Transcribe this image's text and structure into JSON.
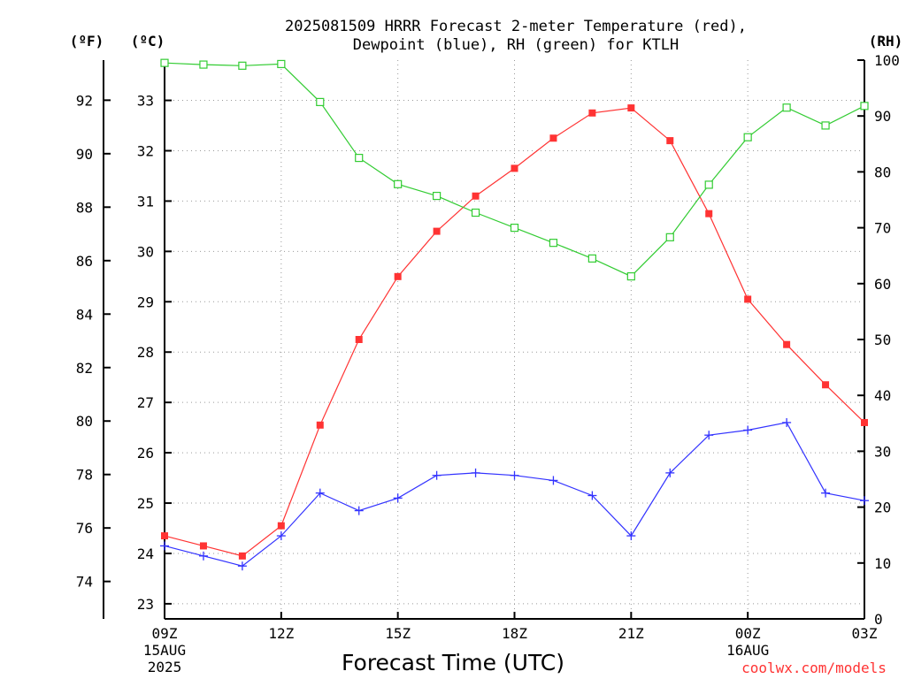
{
  "chart_data": {
    "type": "line",
    "title_line1": "2025081509 HRRR Forecast 2-meter Temperature (red),",
    "title_line2": "Dewpoint (blue), RH (green) for KTLH",
    "unit_labels": {
      "fahrenheit": "(ºF)",
      "celsius": "(ºC)",
      "rh": "(RH)"
    },
    "xlabel": "Forecast Time (UTC)",
    "credit": "coolwx.com/models",
    "x_hours": [
      0,
      1,
      2,
      3,
      4,
      5,
      6,
      7,
      8,
      9,
      10,
      11,
      12,
      13,
      14,
      15,
      16,
      17,
      18
    ],
    "x_ticks": [
      {
        "hour": 0,
        "label": "09Z",
        "sub1": "15AUG",
        "sub2": "2025"
      },
      {
        "hour": 3,
        "label": "12Z",
        "sub1": "",
        "sub2": ""
      },
      {
        "hour": 6,
        "label": "15Z",
        "sub1": "",
        "sub2": ""
      },
      {
        "hour": 9,
        "label": "18Z",
        "sub1": "",
        "sub2": ""
      },
      {
        "hour": 12,
        "label": "21Z",
        "sub1": "",
        "sub2": ""
      },
      {
        "hour": 15,
        "label": "00Z",
        "sub1": "16AUG",
        "sub2": ""
      },
      {
        "hour": 18,
        "label": "03Z",
        "sub1": "",
        "sub2": ""
      }
    ],
    "left_axis_f": {
      "ticks": [
        74,
        76,
        78,
        80,
        82,
        84,
        86,
        88,
        90,
        92
      ],
      "range": [
        72.6,
        93.5
      ]
    },
    "left_axis_c": {
      "ticks": [
        23,
        24,
        25,
        26,
        27,
        28,
        29,
        30,
        31,
        32,
        33
      ],
      "range": [
        22.7,
        33.8
      ]
    },
    "right_axis_rh": {
      "ticks": [
        0,
        10,
        20,
        30,
        40,
        50,
        60,
        70,
        80,
        90,
        100
      ],
      "range": [
        0,
        100
      ]
    },
    "grid": true,
    "series": [
      {
        "name": "Temperature",
        "color": "#ff3333",
        "marker": "filled-square",
        "axis": "celsius",
        "values": [
          24.35,
          24.15,
          23.95,
          24.55,
          26.55,
          28.25,
          29.5,
          30.4,
          31.1,
          31.65,
          32.25,
          32.75,
          32.85,
          32.2,
          30.75,
          29.05,
          28.15,
          27.35,
          26.6
        ]
      },
      {
        "name": "Dewpoint",
        "color": "#3333ff",
        "marker": "plus",
        "axis": "celsius",
        "values": [
          24.15,
          23.95,
          23.75,
          24.35,
          25.2,
          24.85,
          25.1,
          25.55,
          25.6,
          25.55,
          25.45,
          25.15,
          24.35,
          25.6,
          26.35,
          26.45,
          26.6,
          25.2,
          25.05
        ]
      },
      {
        "name": "RH",
        "color": "#33cc33",
        "marker": "open-square",
        "axis": "rh",
        "values": [
          99.5,
          99.2,
          99.0,
          99.3,
          92.5,
          82.5,
          77.8,
          75.7,
          72.7,
          70.0,
          67.3,
          64.5,
          61.3,
          68.3,
          77.7,
          86.2,
          91.5,
          88.3,
          91.8
        ]
      }
    ]
  }
}
